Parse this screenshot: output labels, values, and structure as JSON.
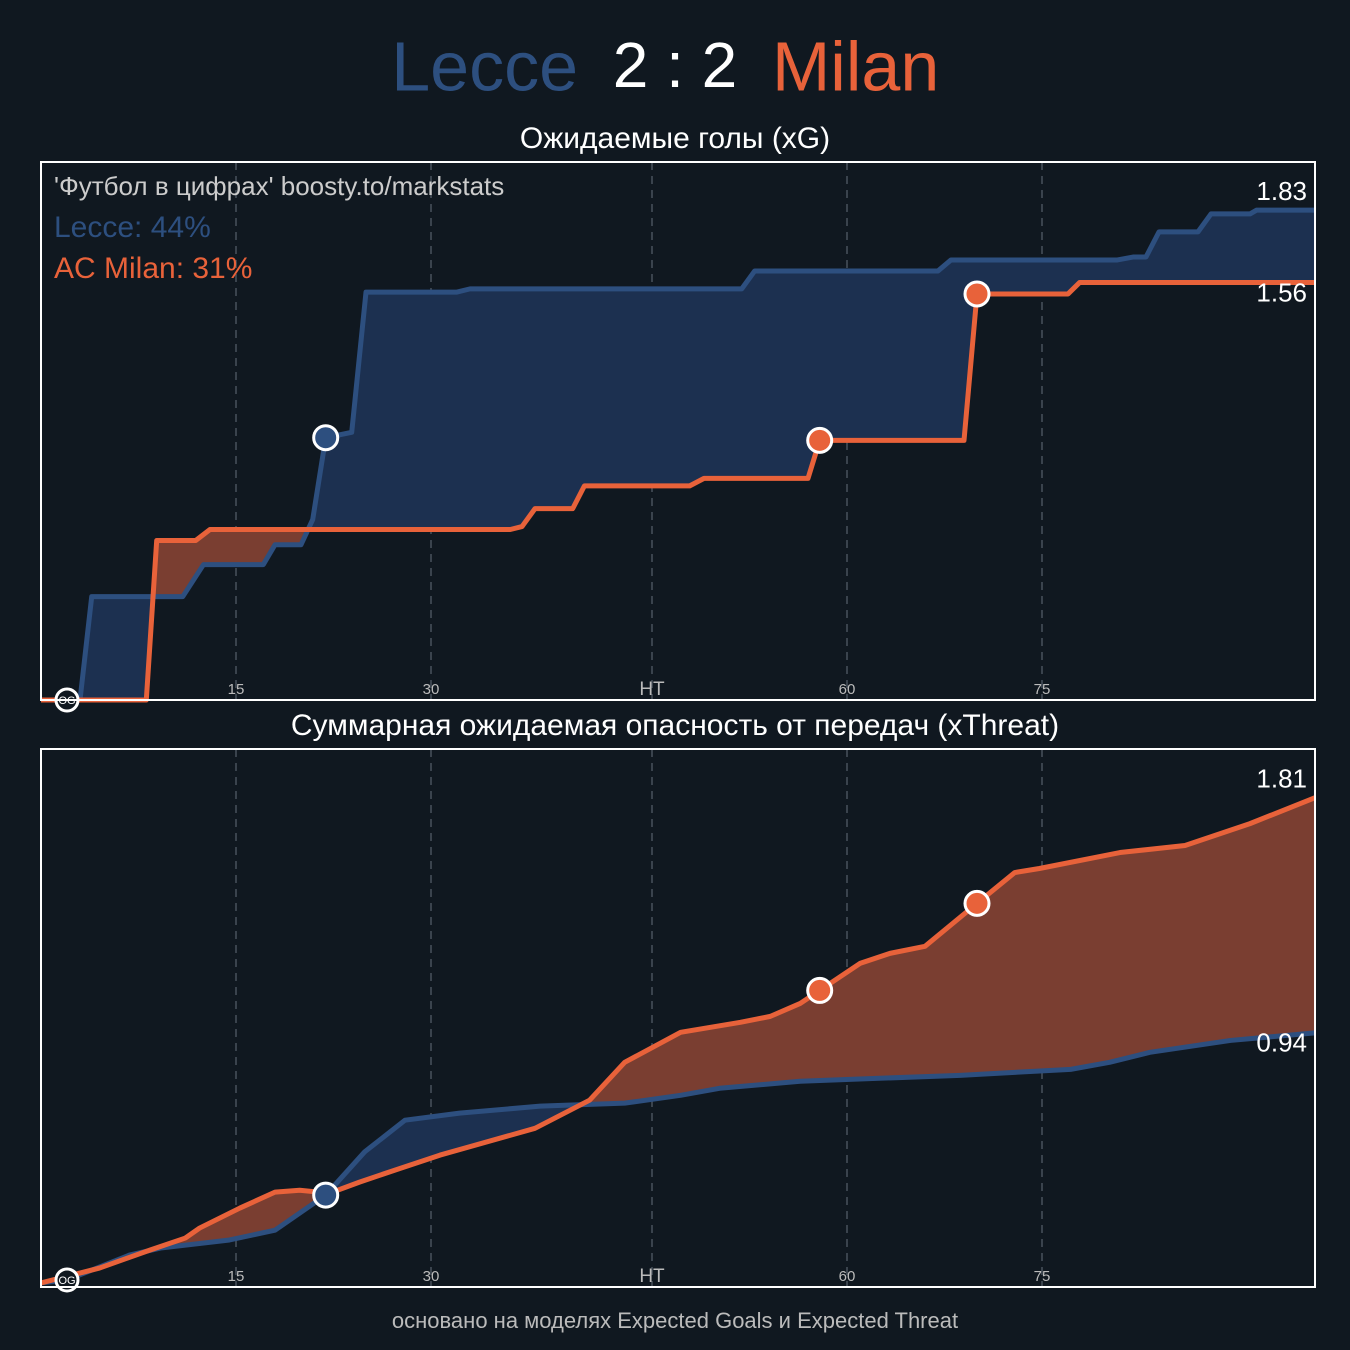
{
  "header": {
    "home": "Lecce",
    "score": "2 : 2",
    "away": "Milan",
    "home_color": "#2d4f7f",
    "away_color": "#e8623a"
  },
  "chart_data": [
    {
      "type": "area",
      "title": "Ожидаемые голы (xG)",
      "annotations": [
        {
          "text": "'Футбол в цифрах' boosty.to/markstats",
          "color": "#cccccc"
        },
        {
          "text": "Lecce: 44%",
          "color": "#2d4f7f"
        },
        {
          "text": "AC Milan: 31%",
          "color": "#e8623a"
        }
      ],
      "xlim": [
        0,
        98
      ],
      "ylim": [
        0,
        2.01
      ],
      "xticks": [
        15,
        30,
        {
          "value": 47,
          "label": "HT"
        },
        {
          "value": 62,
          "label": "60"
        },
        {
          "value": 77,
          "label": "75"
        }
      ],
      "series": [
        {
          "color": "#2d4f7f",
          "fill_color": "#1c3050",
          "x": [
            0,
            3,
            3.9,
            10.9,
            12.5,
            17.1,
            18,
            20,
            20.9,
            21.9,
            23.9,
            25,
            32,
            33,
            53.9,
            54.9,
            69,
            70,
            82.8,
            84,
            85,
            86,
            89,
            90,
            93,
            93.5,
            98
          ],
          "values": [
            0,
            0,
            0.386,
            0.386,
            0.506,
            0.506,
            0.58,
            0.58,
            0.674,
            0.98,
            1.0,
            1.524,
            1.524,
            1.536,
            1.536,
            1.603,
            1.603,
            1.644,
            1.644,
            1.655,
            1.655,
            1.749,
            1.749,
            1.816,
            1.816,
            1.83,
            1.83
          ],
          "goals": [
            {
              "x": 2,
              "y": 0,
              "label": "OG"
            },
            {
              "x": 21.9,
              "y": 0.98
            }
          ]
        },
        {
          "color": "#e8623a",
          "fill_color": "#7a3e31",
          "x": [
            0,
            8.1,
            8.9,
            11.9,
            13,
            36.1,
            37,
            38,
            40.9,
            41.8,
            49.9,
            51,
            59,
            59.9,
            71,
            72,
            79,
            79.9,
            98
          ],
          "values": [
            0,
            0,
            0.596,
            0.596,
            0.637,
            0.637,
            0.648,
            0.715,
            0.715,
            0.8,
            0.8,
            0.828,
            0.828,
            0.97,
            0.97,
            1.517,
            1.517,
            1.56,
            1.56
          ],
          "goals": [
            {
              "x": 59.9,
              "y": 0.97
            },
            {
              "x": 72,
              "y": 1.517
            }
          ]
        }
      ]
    },
    {
      "type": "area",
      "title": "Суммарная ожидаемая опасность от передач (xThreat)",
      "xlim": [
        0,
        98
      ],
      "ylim": [
        0,
        1.99
      ],
      "xticks": [
        15,
        30,
        {
          "value": 47,
          "label": "HT"
        },
        {
          "value": 62,
          "label": "60"
        },
        {
          "value": 77,
          "label": "75"
        }
      ],
      "series": [
        {
          "color": "#2d4f7f",
          "fill_color": "#1c3050",
          "x": [
            0,
            2,
            6.8,
            9.2,
            14.5,
            18,
            21.9,
            24.9,
            28,
            32.2,
            38.4,
            44.9,
            49.2,
            52.2,
            58.4,
            64.5,
            70.7,
            79.2,
            82.2,
            85.3,
            91.5,
            98
          ],
          "values": [
            0.015,
            0.026,
            0.118,
            0.144,
            0.174,
            0.21,
            0.34,
            0.5,
            0.617,
            0.643,
            0.669,
            0.68,
            0.709,
            0.735,
            0.761,
            0.772,
            0.783,
            0.805,
            0.831,
            0.868,
            0.912,
            0.94
          ],
          "goals": [
            {
              "x": 2,
              "y": 0.026,
              "label": "OG"
            },
            {
              "x": 21.9,
              "y": 0.34
            }
          ]
        },
        {
          "color": "#e8623a",
          "fill_color": "#7a3e31",
          "x": [
            0,
            4.5,
            8.4,
            11.1,
            12.2,
            15.3,
            18,
            19.9,
            22.2,
            24.5,
            27.2,
            30.7,
            38,
            42.2,
            44.9,
            49.2,
            53.8,
            56.1,
            58.4,
            59.9,
            63,
            65.3,
            68,
            72,
            74.9,
            76.8,
            83,
            88,
            93,
            98
          ],
          "values": [
            0.015,
            0.07,
            0.137,
            0.181,
            0.218,
            0.292,
            0.351,
            0.358,
            0.347,
            0.388,
            0.432,
            0.488,
            0.587,
            0.691,
            0.831,
            0.942,
            0.979,
            1.001,
            1.049,
            1.097,
            1.197,
            1.234,
            1.26,
            1.419,
            1.533,
            1.548,
            1.607,
            1.633,
            1.714,
            1.81
          ],
          "goals": [
            {
              "x": 59.9,
              "y": 1.097
            },
            {
              "x": 72,
              "y": 1.419
            }
          ]
        }
      ]
    }
  ],
  "footer": "основано на моделях Expected Goals и Expected Threat"
}
